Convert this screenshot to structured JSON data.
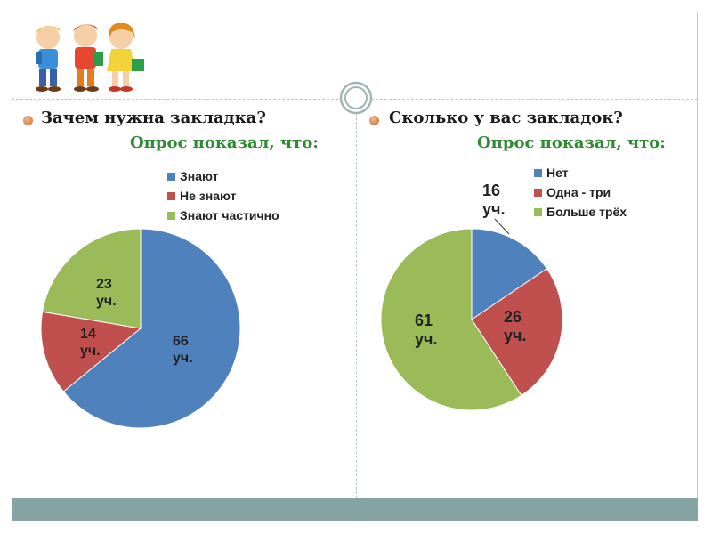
{
  "slide": {
    "left_title": "Зачем нужна закладка?",
    "left_subtitle": "Опрос показал, что:",
    "right_title": "Сколько у вас закладок?",
    "right_subtitle": "Опрос показал, что:"
  },
  "colors": {
    "blue": "#4f81bd",
    "red": "#c0504d",
    "green": "#9bbb59"
  },
  "chart_data": [
    {
      "type": "pie",
      "title": "",
      "legend_position": "top-right",
      "unit": "уч.",
      "slices": [
        {
          "name": "Знают",
          "value": 66,
          "label": "66",
          "unit": "уч.",
          "color": "#4f81bd"
        },
        {
          "name": "Не знают",
          "value": 14,
          "label": "14",
          "unit": "уч.",
          "color": "#c0504d"
        },
        {
          "name": "Знают частично",
          "value": 23,
          "label": "23",
          "unit": "уч.",
          "color": "#9bbb59"
        }
      ]
    },
    {
      "type": "pie",
      "title": "",
      "legend_position": "top-right",
      "unit": "уч.",
      "slices": [
        {
          "name": "Нет",
          "value": 16,
          "label": "16",
          "unit": "уч.",
          "color": "#4f81bd"
        },
        {
          "name": "Одна - три",
          "value": 26,
          "label": "26",
          "unit": "уч.",
          "color": "#c0504d"
        },
        {
          "name": "Больше трёх",
          "value": 61,
          "label": "61",
          "unit": "уч.",
          "color": "#9bbb59"
        }
      ]
    }
  ]
}
